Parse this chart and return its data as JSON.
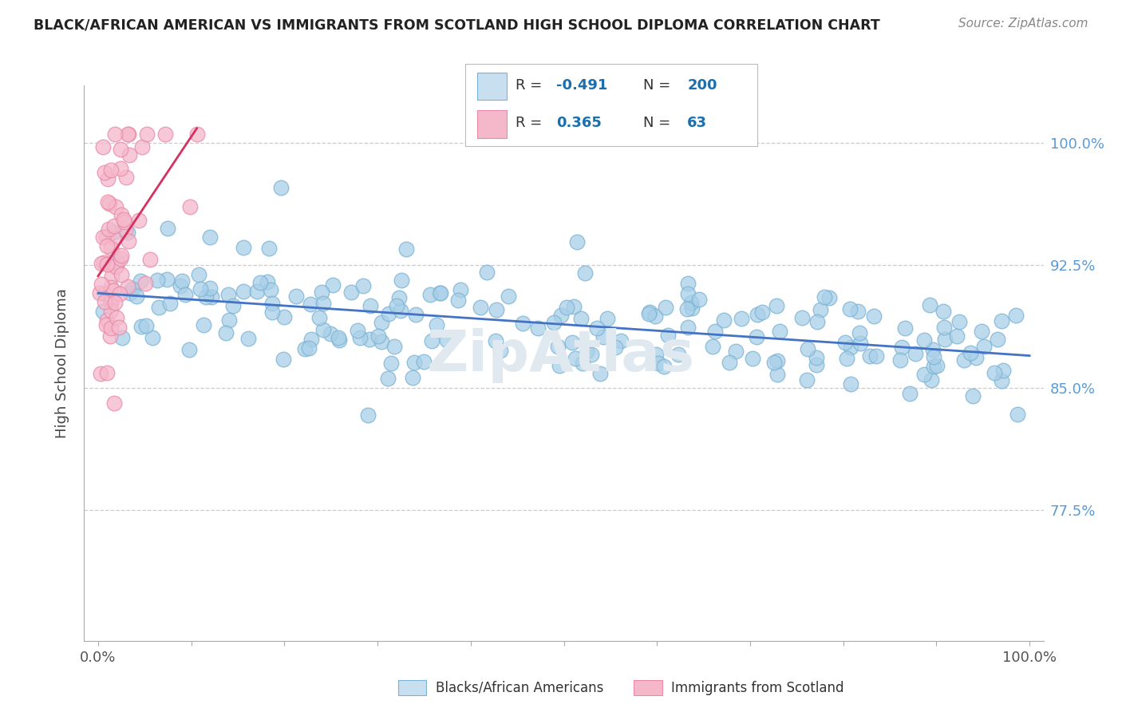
{
  "title": "BLACK/AFRICAN AMERICAN VS IMMIGRANTS FROM SCOTLAND HIGH SCHOOL DIPLOMA CORRELATION CHART",
  "source": "Source: ZipAtlas.com",
  "ylabel": "High School Diploma",
  "blue_R": -0.491,
  "blue_N": 200,
  "pink_R": 0.365,
  "pink_N": 63,
  "blue_color": "#a8cfe8",
  "pink_color": "#f5b8cb",
  "blue_edge_color": "#7bb3d4",
  "pink_edge_color": "#e88aa8",
  "blue_line_color": "#4472c4",
  "pink_line_color": "#d63060",
  "text_blue": "#1a6faf",
  "text_dark": "#333333",
  "background_color": "#ffffff",
  "grid_color": "#cccccc",
  "title_color": "#222222",
  "right_label_color": "#5b9bd5",
  "ytick_vals": [
    0.775,
    0.85,
    0.925,
    1.0
  ],
  "ytick_labels": [
    "77.5%",
    "85.0%",
    "92.5%",
    "100.0%"
  ],
  "ymin": 0.695,
  "ymax": 1.035,
  "xmin": -0.015,
  "xmax": 1.015,
  "legend_label_blue": "Blacks/African Americans",
  "legend_label_pink": "Immigrants from Scotland",
  "legend_box_color": "#c8dff0",
  "legend_box_pink": "#f5b8cb",
  "seed_blue": 42,
  "seed_pink": 123
}
